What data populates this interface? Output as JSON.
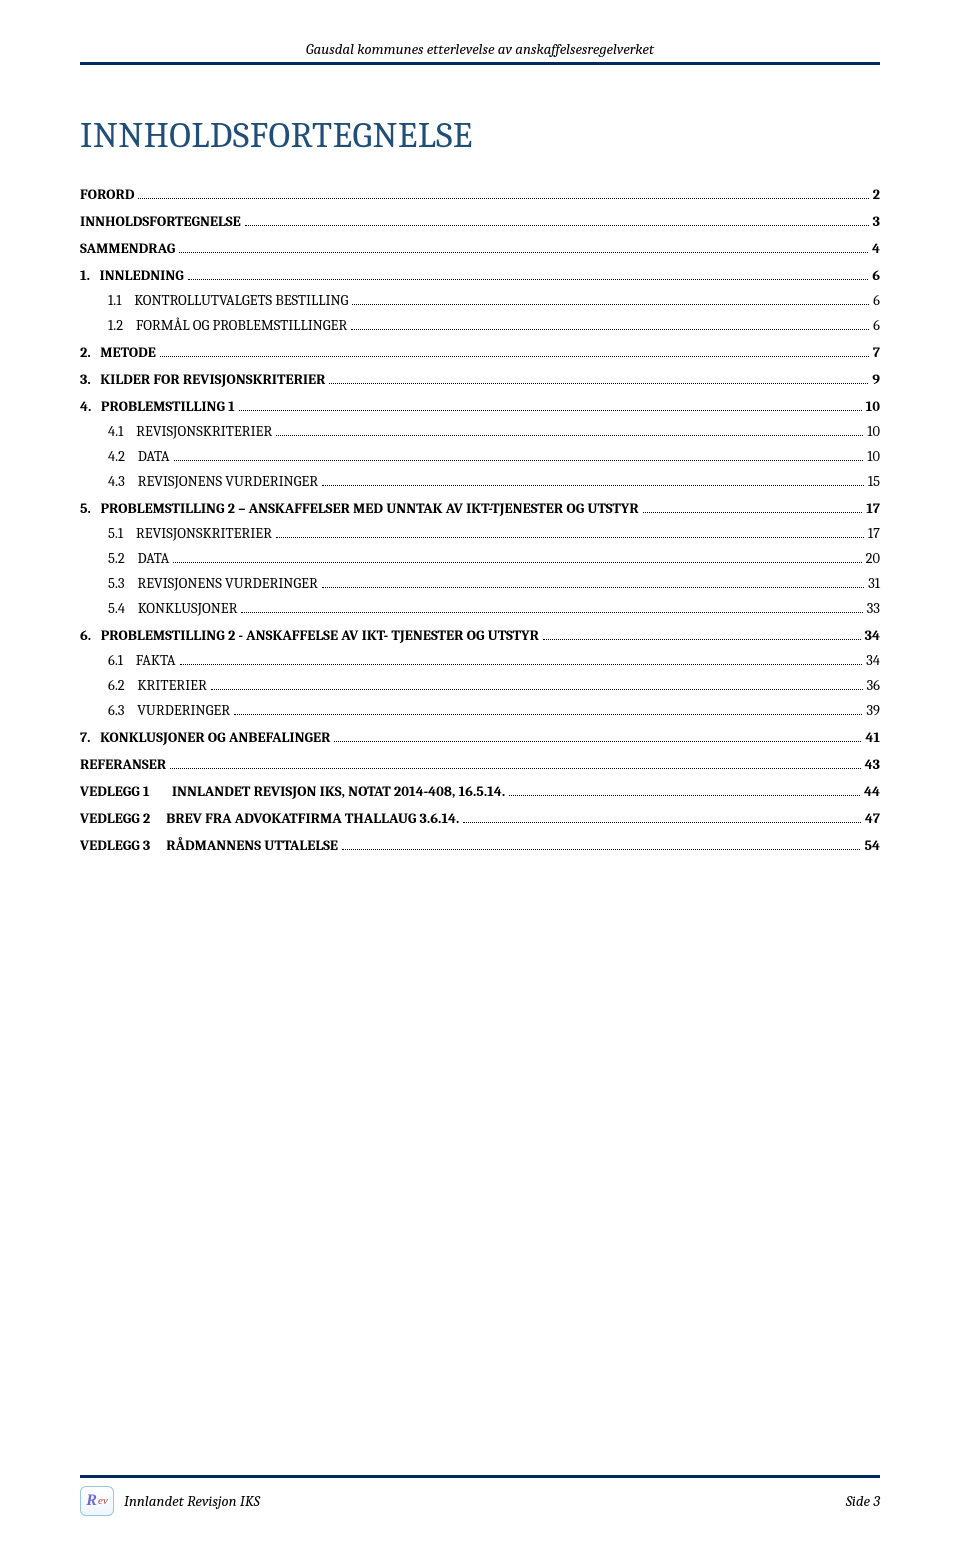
{
  "header": {
    "text": "Gausdal kommunes etterlevelse av anskaffelsesregelverket"
  },
  "title": "INNHOLDSFORTEGNELSE",
  "colors": {
    "rule": "#002b5c",
    "title": "#1f4e79",
    "text": "#000000",
    "background": "#ffffff"
  },
  "typography": {
    "title_fontsize": 36,
    "body_fontsize": 14.5,
    "header_fontsize": 15,
    "font_family": "Cambria"
  },
  "toc": [
    {
      "level": 0,
      "label": "FORORD",
      "page": "2"
    },
    {
      "level": 0,
      "label": "INNHOLDSFORTEGNELSE",
      "page": "3"
    },
    {
      "level": 0,
      "label": "SAMMENDRAG",
      "page": "4"
    },
    {
      "level": 0,
      "label": "1.   INNLEDNING",
      "page": "6"
    },
    {
      "level": 1,
      "label": "1.1    KONTROLLUTVALGETS BESTILLING",
      "caps": true,
      "page": "6"
    },
    {
      "level": 1,
      "label": "1.2    FORMÅL OG PROBLEMSTILLINGER",
      "caps": true,
      "page": "6"
    },
    {
      "level": 0,
      "label": "2.   METODE",
      "page": "7"
    },
    {
      "level": 0,
      "label": "3.   KILDER FOR REVISJONSKRITERIER",
      "page": "9"
    },
    {
      "level": 0,
      "label": "4.   PROBLEMSTILLING 1",
      "page": "10"
    },
    {
      "level": 1,
      "label": "4.1    REVISJONSKRITERIER",
      "caps": true,
      "page": "10"
    },
    {
      "level": 1,
      "label": "4.2    DATA",
      "caps": true,
      "page": "10"
    },
    {
      "level": 1,
      "label": "4.3    REVISJONENS VURDERINGER",
      "caps": true,
      "page": "15"
    },
    {
      "level": 0,
      "label": "5.   PROBLEMSTILLING 2 – ANSKAFFELSER MED UNNTAK AV IKT-TJENESTER OG UTSTYR",
      "page": "17"
    },
    {
      "level": 1,
      "label": "5.1    REVISJONSKRITERIER",
      "caps": true,
      "page": "17"
    },
    {
      "level": 1,
      "label": "5.2    DATA",
      "caps": true,
      "page": "20"
    },
    {
      "level": 1,
      "label": "5.3    REVISJONENS VURDERINGER",
      "caps": true,
      "page": "31"
    },
    {
      "level": 1,
      "label": "5.4    KONKLUSJONER",
      "caps": true,
      "page": "33"
    },
    {
      "level": 0,
      "label": "6.   PROBLEMSTILLING 2 - ANSKAFFELSE AV IKT- TJENESTER OG UTSTYR",
      "page": "34"
    },
    {
      "level": 1,
      "label": "6.1    FAKTA",
      "caps": true,
      "page": "34"
    },
    {
      "level": 1,
      "label": "6.2    KRITERIER",
      "caps": true,
      "page": "36"
    },
    {
      "level": 1,
      "label": "6.3    VURDERINGER",
      "caps": true,
      "page": "39"
    },
    {
      "level": 0,
      "label": "7.   KONKLUSJONER OG ANBEFALINGER",
      "page": "41"
    },
    {
      "level": 0,
      "label": "REFERANSER",
      "page": "43"
    },
    {
      "level": 0,
      "label": "VEDLEGG 1       INNLANDET REVISJON IKS, NOTAT 2014-408, 16.5.14.",
      "page": "44"
    },
    {
      "level": 0,
      "label": "VEDLEGG 2     BREV FRA ADVOKATFIRMA THALLAUG 3.6.14.",
      "page": "47"
    },
    {
      "level": 0,
      "label": "VEDLEGG 3     RÅDMANNENS UTTALELSE",
      "page": "54"
    }
  ],
  "footer": {
    "org": "Innlandet Revisjon IKS",
    "page_label": "Side 3",
    "logo": {
      "r": "R",
      "ev": "ev"
    }
  }
}
